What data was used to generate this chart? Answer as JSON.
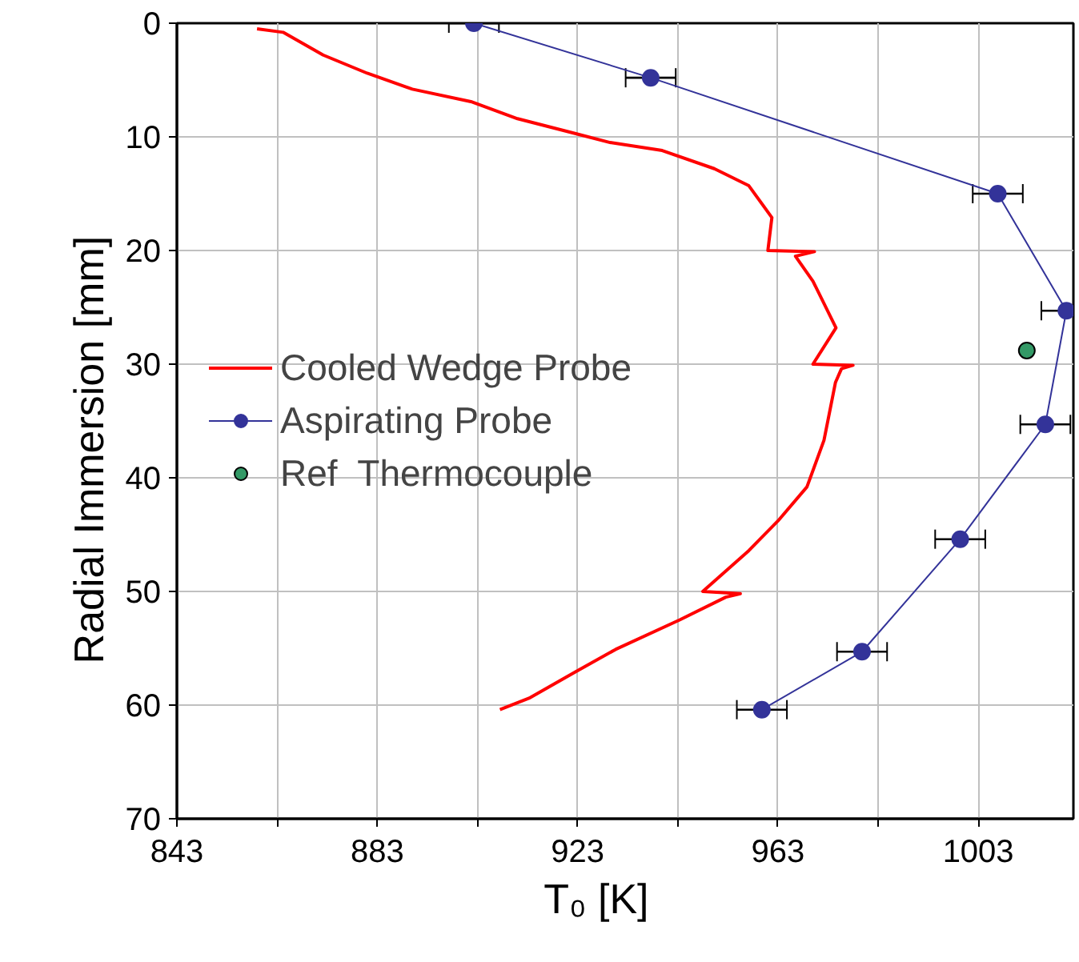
{
  "chart_data": {
    "type": "line",
    "xlabel": "T₀      [K]",
    "ylabel": "Radial Immersion      [mm]",
    "xlim": [
      843,
      1022
    ],
    "ylim": [
      70,
      0
    ],
    "xticks": [
      843,
      {
        "value": 863,
        "label": null
      },
      883,
      {
        "value": 903,
        "label": null
      },
      923,
      {
        "value": 943,
        "label": null
      },
      963,
      {
        "value": 983,
        "label": null
      },
      1003
    ],
    "yticks": [
      0,
      10,
      20,
      30,
      40,
      50,
      60,
      70
    ],
    "grid": true,
    "legend": "left",
    "series": [
      {
        "name": "Cooled Wedge Probe",
        "color": "#ff0000",
        "marker": "none",
        "line_style": "solid",
        "x": [
          859,
          864.2,
          872.2,
          881,
          890,
          901.7,
          911,
          922.5,
          929.5,
          939.9,
          950.3,
          957.2,
          961.8,
          961,
          970.3,
          966.5,
          970,
          974.6,
          970,
          978,
          975.7,
          974.5,
          972.2,
          968.8,
          963,
          957.2,
          948,
          955.5,
          952.6,
          943.4,
          930.6,
          922.5,
          913.3,
          907.5
        ],
        "values": [
          0.5,
          0.8,
          2.8,
          4.4,
          5.8,
          6.9,
          8.4,
          9.7,
          10.5,
          11.2,
          12.8,
          14.3,
          17.1,
          20.0,
          20.1,
          20.5,
          22.7,
          26.8,
          30.0,
          30.1,
          30.4,
          31.6,
          36.7,
          40.8,
          43.8,
          46.4,
          50.0,
          50.2,
          50.5,
          52.5,
          55.1,
          57.1,
          59.4,
          60.4
        ]
      },
      {
        "name": "Aspirating Probe",
        "color": "#333399",
        "marker": "circle",
        "line_style": "solid",
        "x": [
          902.3,
          937.6,
          1006.9,
          1020.6,
          1016.4,
          999.4,
          979.8,
          959.8
        ],
        "values": [
          0,
          4.8,
          15.0,
          25.3,
          35.3,
          45.4,
          55.3,
          60.4
        ],
        "xerrors": [
          5,
          5,
          5,
          5,
          5,
          5,
          5,
          5
        ]
      },
      {
        "name": "Ref  Thermocouple",
        "color": "#339966",
        "type": "scatter",
        "marker": "circle",
        "x": [
          1012.7
        ],
        "values": [
          28.8
        ]
      }
    ]
  }
}
